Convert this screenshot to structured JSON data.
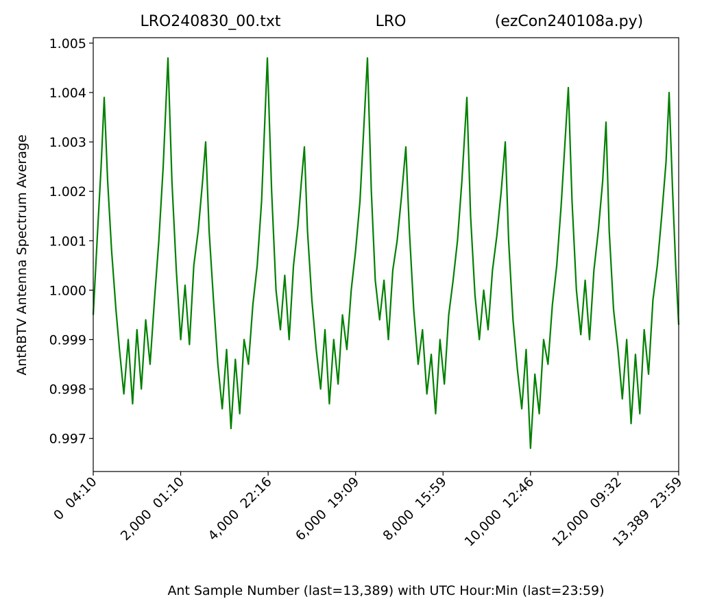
{
  "chart_data": {
    "type": "line",
    "title_left": "LRO240830_00.txt",
    "title": "LRO",
    "title_right": "(ezCon240108a.py)",
    "x_label": "Ant Sample Number (last=13,389) with UTC Hour:Min (last=23:59)",
    "y_label": "AntRBTV Antenna Spectrum Average",
    "xlim": [
      0,
      13389
    ],
    "ylim": [
      0.99633,
      1.00511
    ],
    "xticks": [
      {
        "value": 0,
        "label": "0  04:10"
      },
      {
        "value": 2000,
        "label": "2,000  01:10"
      },
      {
        "value": 4000,
        "label": "4,000  22:16"
      },
      {
        "value": 6000,
        "label": "6,000  19:09"
      },
      {
        "value": 8000,
        "label": "8,000  15:59"
      },
      {
        "value": 10000,
        "label": "10,000  12:46"
      },
      {
        "value": 12000,
        "label": "12,000  09:32"
      },
      {
        "value": 13389,
        "label": "13,389  23:59"
      }
    ],
    "yticks": [
      0.997,
      0.998,
      0.999,
      {
        "value": 1.0,
        "label": "1.000"
      },
      1.001,
      1.002,
      1.003,
      1.004,
      1.005
    ],
    "grid": false,
    "series": [
      {
        "name": "AntRBTV",
        "color": "#008000",
        "x": [
          0,
          100,
          180,
          251,
          330,
          420,
          520,
          600,
          700,
          800,
          900,
          1000,
          1100,
          1200,
          1300,
          1400,
          1500,
          1600,
          1709,
          1800,
          1900,
          2000,
          2100,
          2200,
          2300,
          2400,
          2500,
          2571,
          2650,
          2750,
          2850,
          2950,
          3050,
          3150,
          3250,
          3350,
          3450,
          3550,
          3650,
          3750,
          3850,
          3982,
          4080,
          4180,
          4280,
          4380,
          4480,
          4580,
          4680,
          4760,
          4829,
          4900,
          5000,
          5100,
          5200,
          5300,
          5400,
          5500,
          5600,
          5700,
          5800,
          5900,
          6000,
          6100,
          6271,
          6360,
          6450,
          6550,
          6650,
          6750,
          6850,
          6950,
          7050,
          7149,
          7230,
          7330,
          7430,
          7530,
          7630,
          7730,
          7830,
          7930,
          8030,
          8130,
          8230,
          8330,
          8430,
          8545,
          8630,
          8730,
          8830,
          8930,
          9030,
          9130,
          9230,
          9330,
          9423,
          9500,
          9600,
          9700,
          9800,
          9900,
          10000,
          10100,
          10200,
          10300,
          10400,
          10500,
          10600,
          10700,
          10865,
          10950,
          11050,
          11150,
          11250,
          11350,
          11450,
          11550,
          11650,
          11727,
          11800,
          11900,
          12000,
          12100,
          12200,
          12300,
          12400,
          12500,
          12600,
          12700,
          12800,
          12900,
          13000,
          13100,
          13170,
          13250,
          13320,
          13389
        ],
        "values": [
          0.9995,
          1.0012,
          1.0025,
          1.0039,
          1.0022,
          1.0008,
          0.9996,
          0.9988,
          0.9979,
          0.999,
          0.9977,
          0.9992,
          0.998,
          0.9994,
          0.9985,
          0.9998,
          1.001,
          1.0025,
          1.0047,
          1.0022,
          1.0004,
          0.999,
          1.0001,
          0.9989,
          1.0005,
          1.0012,
          1.0022,
          1.003,
          1.0012,
          0.9998,
          0.9985,
          0.9976,
          0.9988,
          0.9972,
          0.9986,
          0.9975,
          0.999,
          0.9985,
          0.9997,
          1.0005,
          1.0018,
          1.0047,
          1.002,
          1.0,
          0.9992,
          1.0003,
          0.999,
          1.0005,
          1.0013,
          1.0022,
          1.0029,
          1.0012,
          0.9998,
          0.9988,
          0.998,
          0.9992,
          0.9977,
          0.999,
          0.9981,
          0.9995,
          0.9988,
          1.0,
          1.0008,
          1.0018,
          1.0047,
          1.002,
          1.0002,
          0.9994,
          1.0002,
          0.999,
          1.0004,
          1.001,
          1.0019,
          1.0029,
          1.0012,
          0.9996,
          0.9985,
          0.9992,
          0.9979,
          0.9987,
          0.9975,
          0.999,
          0.9981,
          0.9995,
          1.0002,
          1.001,
          1.0022,
          1.0039,
          1.0015,
          0.9999,
          0.999,
          1.0,
          0.9992,
          1.0004,
          1.0011,
          1.002,
          1.003,
          1.001,
          0.9994,
          0.9984,
          0.9976,
          0.9988,
          0.9968,
          0.9983,
          0.9975,
          0.999,
          0.9985,
          0.9997,
          1.0005,
          1.0017,
          1.0041,
          1.0018,
          1.0,
          0.9991,
          1.0002,
          0.999,
          1.0004,
          1.0012,
          1.0022,
          1.0034,
          1.0012,
          0.9996,
          0.9988,
          0.9978,
          0.999,
          0.9973,
          0.9987,
          0.9975,
          0.9992,
          0.9983,
          0.9998,
          1.0005,
          1.0015,
          1.0026,
          1.004,
          1.002,
          1.0005,
          0.9993
        ]
      }
    ]
  }
}
